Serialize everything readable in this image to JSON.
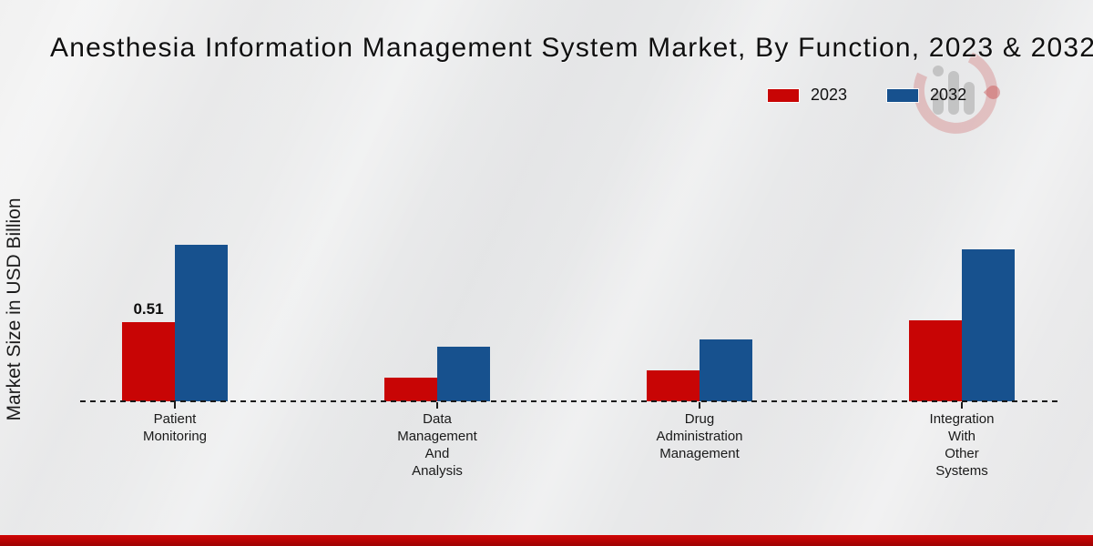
{
  "page": {
    "background_color": "#e9e9e9",
    "footer_color": "#c00202"
  },
  "chart_data": {
    "type": "bar",
    "title": "Anesthesia Information Management System Market, By Function, 2023 & 2032",
    "xlabel": "",
    "ylabel": "Market Size in USD Billion",
    "categories": [
      "Patient\nMonitoring",
      "Data\nManagement\nAnd\nAnalysis",
      "Drug\nAdministration\nManagement",
      "Integration\nWith\nOther\nSystems"
    ],
    "series": [
      {
        "name": "2023",
        "color": "#c80505",
        "values": [
          0.51,
          0.15,
          0.2,
          0.52
        ],
        "labels": [
          "0.51",
          null,
          null,
          null
        ]
      },
      {
        "name": "2032",
        "color": "#17518e",
        "values": [
          1.01,
          0.35,
          0.4,
          0.98
        ]
      }
    ],
    "ylim": [
      0,
      1.6
    ],
    "grid": false,
    "legend_position": "top-right",
    "baseline_style": "dashed",
    "watermark_icon": "market-research-future-logo"
  }
}
